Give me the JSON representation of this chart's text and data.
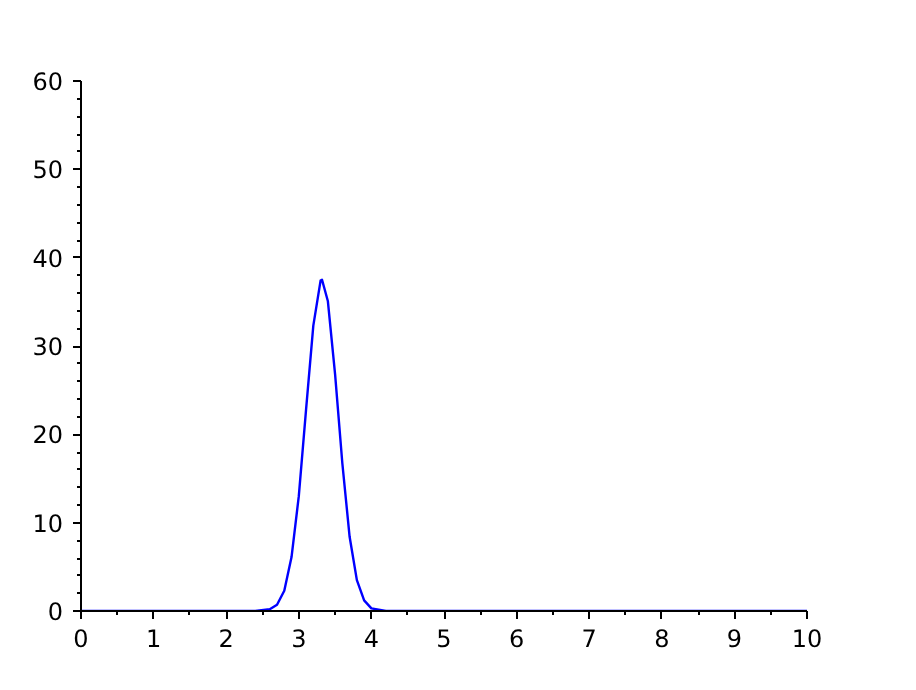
{
  "chart_data": {
    "type": "line",
    "x": [
      0,
      2.4,
      2.6,
      2.7,
      2.8,
      2.9,
      3.0,
      3.1,
      3.2,
      3.3,
      3.32,
      3.4,
      3.5,
      3.6,
      3.7,
      3.8,
      3.9,
      4.0,
      4.2,
      10
    ],
    "series": [
      {
        "color": "#0000ff",
        "values": [
          0,
          0,
          0.2,
          0.7,
          2.3,
          6.1,
          13.0,
          22.8,
          32.3,
          37.4,
          37.5,
          35.1,
          26.8,
          16.7,
          8.4,
          3.5,
          1.2,
          0.3,
          0,
          0
        ]
      }
    ],
    "xlim": [
      0,
      10
    ],
    "ylim": [
      0,
      60
    ],
    "xticks": [
      0,
      1,
      2,
      3,
      4,
      5,
      6,
      7,
      8,
      9,
      10
    ],
    "yticks": [
      0,
      10,
      20,
      30,
      40,
      50,
      60
    ],
    "grid": false,
    "marker": "none",
    "line_style": "solid"
  }
}
